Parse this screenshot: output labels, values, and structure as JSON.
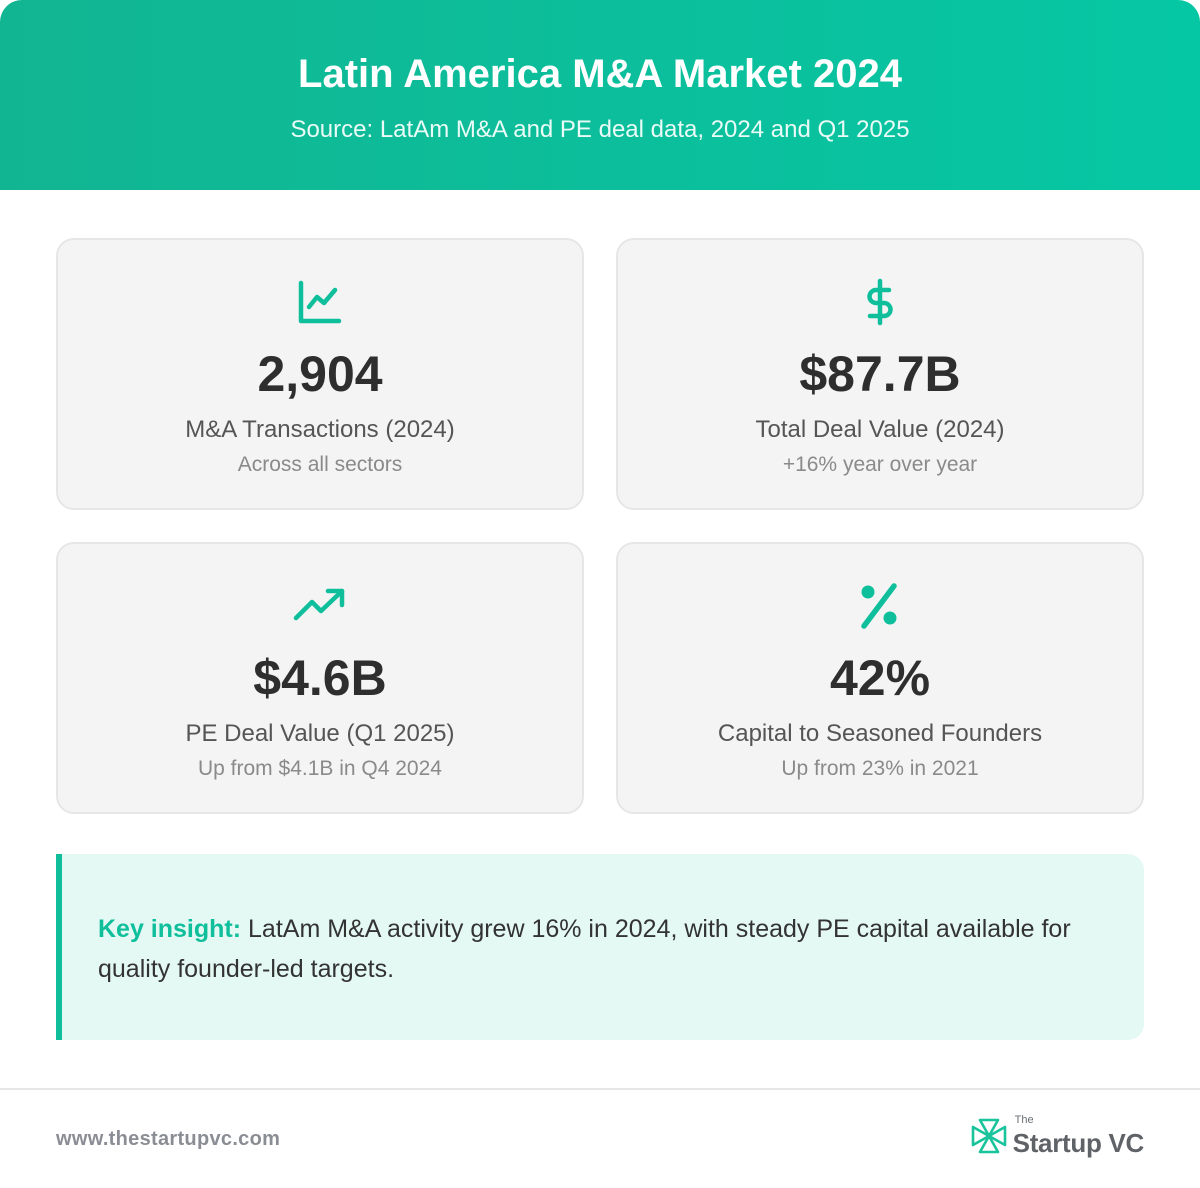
{
  "header": {
    "title": "Latin America M&A Market 2024",
    "subtitle": "Source: LatAm M&A and PE deal data, 2024 and Q1 2025"
  },
  "cards": [
    {
      "icon": "line-chart-icon",
      "value": "2,904",
      "label": "M&A Transactions (2024)",
      "sub": "Across all sectors"
    },
    {
      "icon": "dollar-sign-icon",
      "value": "$87.7B",
      "label": "Total Deal Value (2024)",
      "sub": "+16% year over year"
    },
    {
      "icon": "trending-up-icon",
      "value": "$4.6B",
      "label": "PE Deal Value (Q1 2025)",
      "sub": "Up from $4.1B in Q4 2024"
    },
    {
      "icon": "percent-icon",
      "value": "42%",
      "label": "Capital to Seasoned Founders",
      "sub": "Up from 23% in 2021"
    }
  ],
  "insight": {
    "key": "Key insight:",
    "text": "LatAm M&A activity grew 16% in 2024, with steady PE capital available for quality founder-led targets."
  },
  "footer": {
    "url": "www.thestartupvc.com",
    "brand_small": "The",
    "brand_name": "Startup VC"
  },
  "colors": {
    "accent": "#0fbf9c",
    "header_start": "#12b592",
    "header_end": "#06c7a4",
    "card_bg": "#f4f4f4",
    "insight_bg": "#e4f9f3"
  }
}
